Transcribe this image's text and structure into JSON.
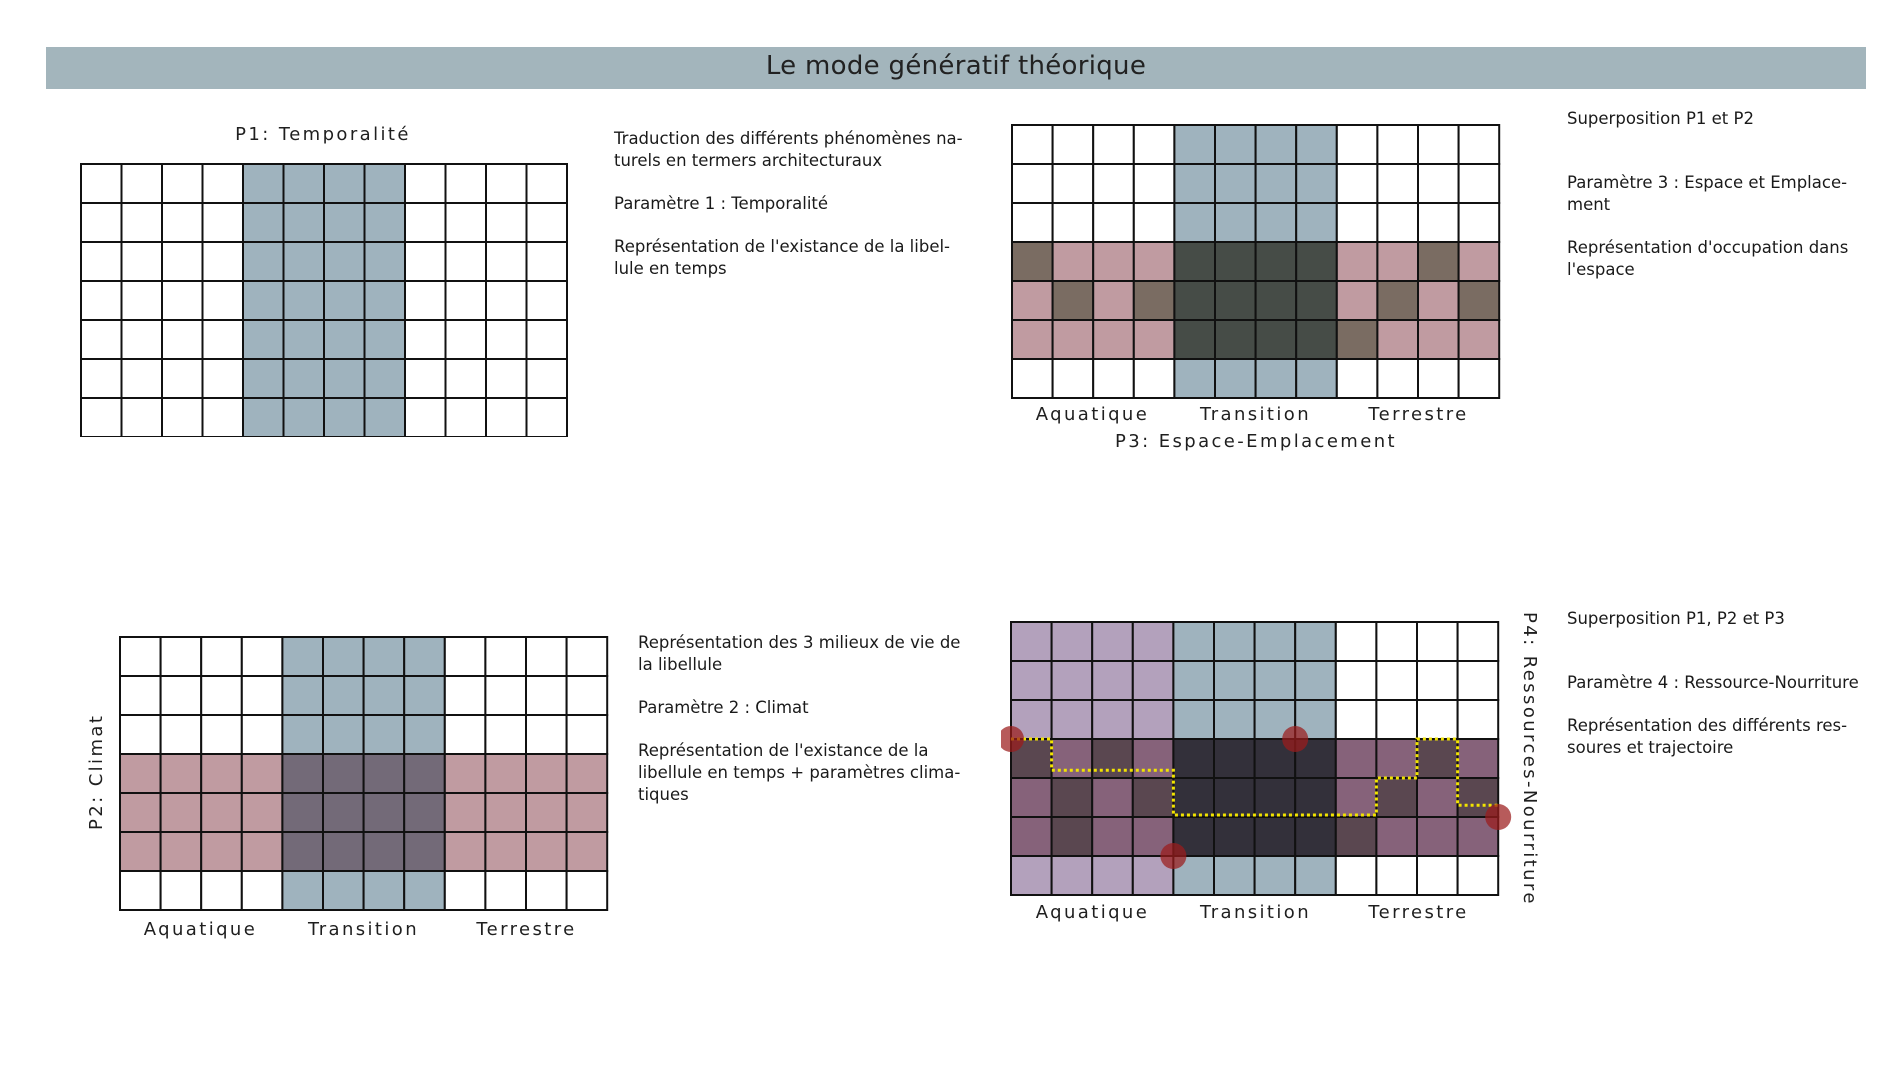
{
  "title": "Le mode génératif théorique",
  "colors": {
    "white": "#ffffff",
    "blue": "#9fb3be",
    "pink": "#c09ba1",
    "brown": "#7a6c62",
    "dark": "#464c47",
    "purple": "#b3a1bc",
    "mauve": "#86627a",
    "darkmauve": "#5a4750",
    "black": "#33303a",
    "slate": "#736a78",
    "marker": "#9b1c1c",
    "path": "#f2e400"
  },
  "panels": {
    "p1": {
      "title": "P1: Temporalité",
      "rows": [
        "WWWWBBBBWWWW",
        "WWWWBBBBWWWW",
        "WWWWBBBBWWWW",
        "WWWWBBBBWWWW",
        "WWWWBBBBWWWW",
        "WWWWBBBBWWWW",
        "WWWWBBBBWWWW"
      ],
      "description": [
        "Traduction des différents phénomènes na- turels en termers architecturaux",
        "Paramètre 1 : Temporalité",
        "Représentation de l'existance de la libel- lule en temps"
      ]
    },
    "p2": {
      "title": "P2: Climat",
      "rows": [
        "WWWWBBBBWWWW",
        "WWWWBBBBWWWW",
        "WWWWBBBBWWWW",
        "PPPPSSSSPPPP",
        "PPPPSSSSPPPP",
        "PPPPSSSSPPPP",
        "WWWWBBBBWWWW"
      ],
      "zones": [
        "Aquatique",
        "Transition",
        "Terrestre"
      ],
      "description": [
        "Représentation des 3 milieux de vie de la libellule",
        "Paramètre 2 : Climat",
        "Représentation de l'existance de la libellule en temps + paramètres clima- tiques"
      ]
    },
    "p3": {
      "title": "P3: Espace-Emplacement",
      "rows": [
        "WWWWBBBBWWWW",
        "WWWWBBBBWWWW",
        "WWWWBBBBWWWW",
        "NPPPDDDDPPNP",
        "PNPNDDDDPNPN",
        "PPPPDDDDNPPP",
        "WWWWBBBBWWWW"
      ],
      "zones": [
        "Aquatique",
        "Transition",
        "Terrestre"
      ],
      "description": [
        "Superposition P1 et P2",
        "Paramètre 3 : Espace et Emplace- ment",
        "Représentation d'occupation dans l'espace"
      ]
    },
    "p4": {
      "title": "P4: Ressources-Nourriture",
      "rows": [
        "UUUUBBBBWWWW",
        "UUUUBBBBWWWW",
        "UUUUBBBBWWWW",
        "RMRMKKKKMMRM",
        "MRMRKKKKMRMR",
        "MRMMKKKKRMMM",
        "UUUUBBBBWWWW"
      ],
      "zones": [
        "Aquatique",
        "Transition",
        "Terrestre"
      ],
      "description": [
        "Superposition P1, P2 et P3",
        "Paramètre 4 : Ressource-Nourriture",
        "Représentation des différents res- soures et trajectoire"
      ]
    }
  }
}
